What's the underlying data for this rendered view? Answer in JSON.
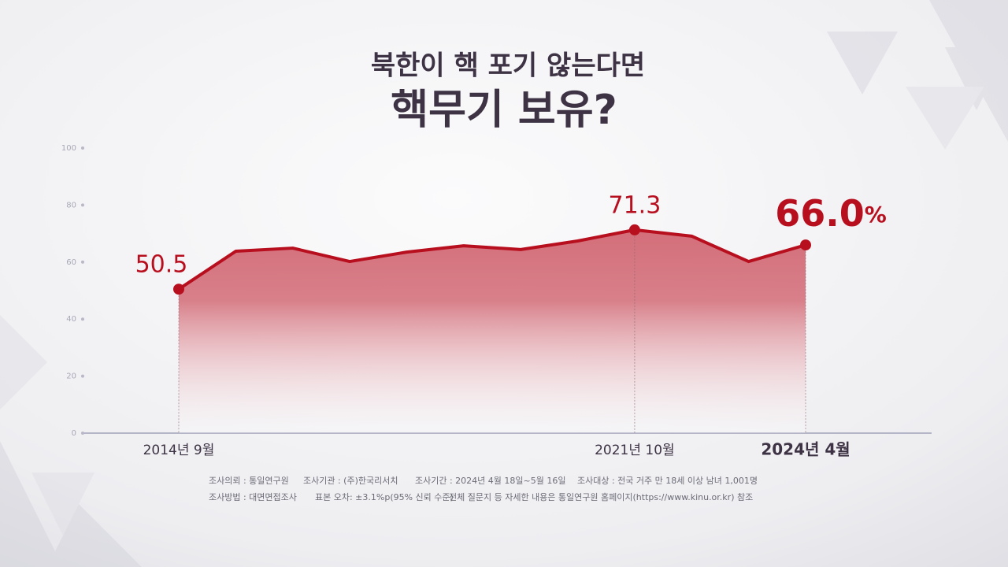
{
  "chart_data": {
    "type": "area",
    "title": "북한이 핵 포기 않는다면",
    "subtitle": "핵무기 보유?",
    "categories": [
      "2014년 9월",
      null,
      null,
      null,
      null,
      null,
      null,
      null,
      "2021년 10월",
      null,
      null,
      "2024년 4월"
    ],
    "values": [
      50.5,
      63.8,
      64.9,
      60.2,
      63.5,
      65.7,
      64.4,
      67.4,
      71.3,
      69.1,
      60.2,
      66.0
    ],
    "value_labels": [
      "50.5",
      null,
      null,
      null,
      null,
      null,
      null,
      null,
      "71.3",
      null,
      null,
      "66.0%"
    ],
    "color": "#b80f1f",
    "ylim": [
      0,
      100
    ],
    "yticks": [
      0,
      20,
      40,
      60,
      80,
      100
    ],
    "notes": [
      [
        "조사의뢰 : 통일연구원",
        "조사기관 : (주)한국리서치",
        "조사기간 : 2024년 4월 18일~5월 16일",
        "조사대상 : 전국 거주 만 18세 이상 남녀 1,001명"
      ],
      [
        "조사방법 : 대면면접조사",
        "표본 오차: ±3.1%p(95% 신뢰 수준)",
        "전체 질문지 등 자세한 내용은 통일연구원 홈페이지(https://www.kinu.or.kr) 참조"
      ]
    ]
  }
}
